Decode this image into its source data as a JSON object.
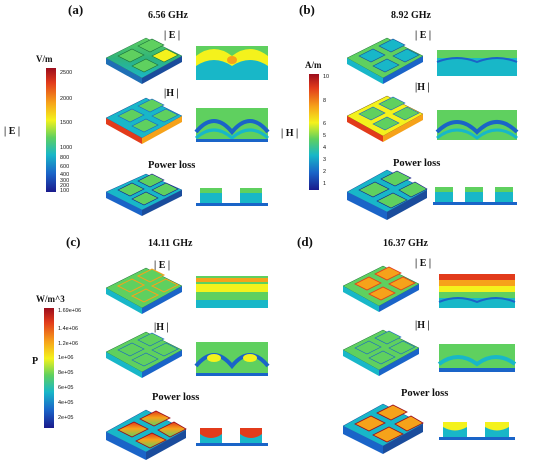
{
  "panels": [
    {
      "label": "(a)",
      "freq": "6.56 GHz",
      "e": "| E |",
      "h": "|H |",
      "loss": "Power loss"
    },
    {
      "label": "(b)",
      "freq": "8.92 GHz",
      "e": "| E |",
      "h": "|H |",
      "loss": "Power loss"
    },
    {
      "label": "(c)",
      "freq": "14.11 GHz",
      "e": "| E |",
      "h": "|H |",
      "loss": "Power loss"
    },
    {
      "label": "(d)",
      "freq": "16.37 GHz",
      "e": "| E |",
      "h": "|H |",
      "loss": "Power loss"
    }
  ],
  "legends": [
    {
      "unit": "V/m",
      "quantity": "| E |",
      "ticks": [
        "2500",
        "2000",
        "1500",
        "1000",
        "800",
        "600",
        "400",
        "300",
        "200",
        "100"
      ]
    },
    {
      "unit": "A/m",
      "quantity": "| H |",
      "ticks": [
        "10",
        "8",
        "6",
        "5",
        "4",
        "3",
        "2",
        "1"
      ]
    },
    {
      "unit": "W/m^3",
      "quantity": "P",
      "ticks": [
        "1.69e+06",
        "1.4e+06",
        "1.2e+06",
        "1e+06",
        "8e+05",
        "6e+05",
        "4e+05",
        "2e+05"
      ]
    }
  ],
  "colors": {
    "scale": [
      "#9b0d1c",
      "#e23b1b",
      "#f6a21a",
      "#f4f21c",
      "#5fd05f",
      "#18b7c8",
      "#1a64c8",
      "#1a1a8c"
    ]
  }
}
